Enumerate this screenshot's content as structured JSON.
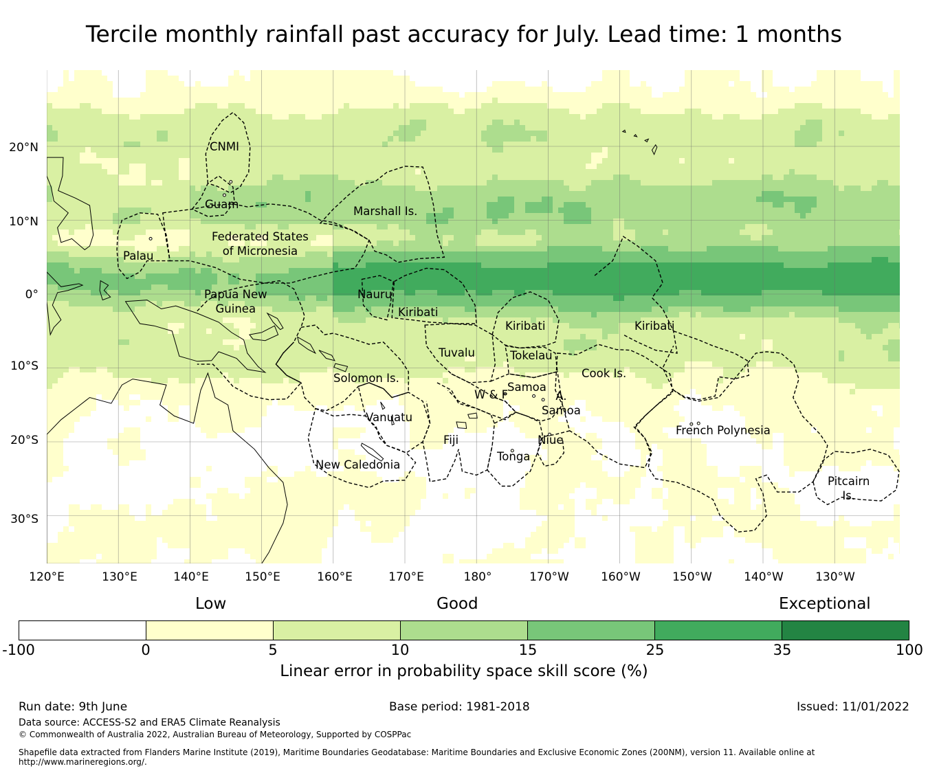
{
  "title": "Tercile monthly rainfall past accuracy for July. Lead time: 1 months",
  "map": {
    "lat_ticks": [
      "20°N",
      "10°N",
      "0°",
      "10°S",
      "20°S",
      "30°S"
    ],
    "lat_values": [
      20,
      10,
      0,
      -10,
      -20,
      -30
    ],
    "lon_ticks": [
      "120°E",
      "130°E",
      "140°E",
      "150°E",
      "160°E",
      "170°E",
      "180°",
      "170°W",
      "160°W",
      "150°W",
      "140°W",
      "130°W"
    ],
    "lon_values": [
      120,
      130,
      140,
      150,
      160,
      170,
      180,
      190,
      200,
      210,
      220,
      230
    ],
    "regions": [
      {
        "name": "CNMI"
      },
      {
        "name": "Guam"
      },
      {
        "name": "Marshall Is."
      },
      {
        "name": "Federated States\nof Micronesia"
      },
      {
        "name": "Palau"
      },
      {
        "name": "Papua New\nGuinea"
      },
      {
        "name": "Nauru"
      },
      {
        "name": "Kiribati"
      },
      {
        "name": "Kiribati"
      },
      {
        "name": "Kiribati"
      },
      {
        "name": "Tuvalu"
      },
      {
        "name": "Tokelau"
      },
      {
        "name": "Solomon Is."
      },
      {
        "name": "Cook Is."
      },
      {
        "name": "Samoa"
      },
      {
        "name": "W & F"
      },
      {
        "name": "A.\nSamoa"
      },
      {
        "name": "Vanuatu"
      },
      {
        "name": "French Polynesia"
      },
      {
        "name": "Fiji"
      },
      {
        "name": "Niue"
      },
      {
        "name": "Tonga"
      },
      {
        "name": "New Caledonia"
      },
      {
        "name": "Pitcairn\nIs."
      }
    ]
  },
  "colorbar": {
    "categories": [
      "Low",
      "Good",
      "Exceptional"
    ],
    "ticks": [
      "-100",
      "0",
      "5",
      "10",
      "15",
      "25",
      "35",
      "100"
    ],
    "colors": [
      "#ffffff",
      "#ffffcc",
      "#d9f0a3",
      "#addd8e",
      "#78c679",
      "#41ab5d",
      "#238443"
    ],
    "label": "Linear error in probability space skill score (%)"
  },
  "footer": {
    "run_date": "Run date: 9th June",
    "base_period": "Base period: 1981-2018",
    "issued": "Issued: 11/01/2022",
    "data_source": "Data source: ACCESS-S2 and ERA5 Climate Reanalysis",
    "copyright": "© Commonwealth of Australia 2022, Australian Bureau of Meteorology, Supported by COSPPac",
    "shapefile_1": "Shapefile data extracted from Flanders Marine Institute (2019), Maritime Boundaries Geodatabase: Maritime Boundaries and Exclusive Economic Zones (200NM), version 11. Available online at",
    "shapefile_2": "http://www.marineregions.org/."
  }
}
